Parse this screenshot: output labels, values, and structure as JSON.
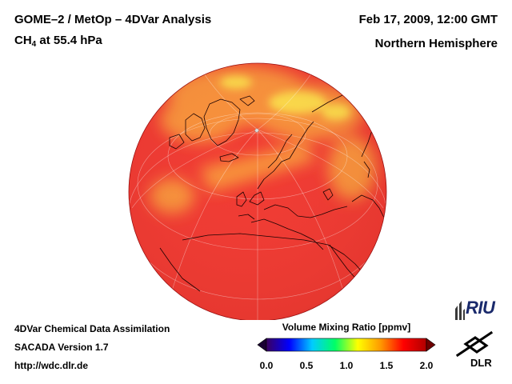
{
  "header": {
    "title_line1": "GOME–2 / MetOp – 4DVar Analysis",
    "species": "CH",
    "species_subscript": "4",
    "pressure_level": " at 55.4 hPa",
    "datetime": "Feb 17, 2009, 12:00 GMT",
    "region": "Northern Hemisphere"
  },
  "footer": {
    "line1": "4DVar Chemical Data Assimilation",
    "line2": "SACADA Version 1.7",
    "line3": "http://wdc.dlr.de"
  },
  "colorbar": {
    "title": "Volume Mixing Ratio [ppmv]",
    "ticks": [
      "0.0",
      "0.5",
      "1.0",
      "1.5",
      "2.0"
    ],
    "min": 0.0,
    "max": 2.0,
    "colors": [
      "#3a0060",
      "#0000ff",
      "#00ccff",
      "#00ff66",
      "#ffff00",
      "#ff9900",
      "#ff0000",
      "#b00000"
    ]
  },
  "map": {
    "projection": "orthographic",
    "field_colors": {
      "background": "#f03a32",
      "elevated": "#f8903a",
      "high": "#fcd84a"
    }
  },
  "logos": {
    "riu": "RIU",
    "dlr": "DLR"
  }
}
